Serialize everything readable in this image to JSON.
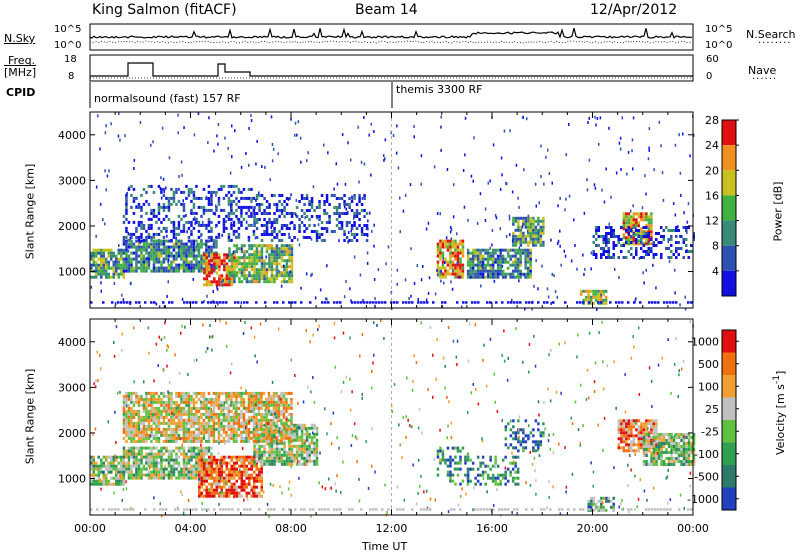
{
  "header": {
    "station": "King Salmon (fitACF)",
    "beam": "Beam 14",
    "date": "12/Apr/2012"
  },
  "top_panels": {
    "nsky_label": "N.Sky",
    "nsearch_label": "N.Search",
    "freq_label_1": "Freq.",
    "freq_label_2": "[MHz]",
    "nave_label": "Nave",
    "cpid_label": "CPID",
    "nsky_ticks": [
      "10^5",
      "10^0"
    ],
    "nsearch_ticks": [
      "10^5",
      "10^0"
    ],
    "freq_ticks": [
      "18",
      "8"
    ],
    "nave_ticks": [
      "60",
      "0"
    ],
    "cpid_segments": [
      {
        "label": "normalsound (fast) 157 RF",
        "start_hour": 0
      },
      {
        "label": "themis 3300 RF",
        "start_hour": 12
      }
    ]
  },
  "chart_data": [
    {
      "type": "heatmap",
      "name": "power-panel",
      "ylabel": "Slant Range [km]",
      "yticks": [
        "1000",
        "2000",
        "3000",
        "4000"
      ],
      "ylim": [
        200,
        4500
      ],
      "xlim": [
        0,
        24
      ],
      "colorbar": {
        "label": "Power [dB]",
        "ticks": [
          "4",
          "8",
          "12",
          "16",
          "20",
          "24",
          "28"
        ],
        "colors": [
          "#1010e0",
          "#2e50b0",
          "#3a8a7a",
          "#40b040",
          "#c8c020",
          "#f09020",
          "#e01010"
        ]
      },
      "regions": [
        {
          "t0": 0.0,
          "t1": 1.3,
          "r0": 900,
          "r1": 1500,
          "level": 0.45
        },
        {
          "t0": 1.3,
          "t1": 5.0,
          "r0": 1000,
          "r1": 1700,
          "level": 0.35
        },
        {
          "t0": 1.3,
          "t1": 6.5,
          "r0": 1700,
          "r1": 2900,
          "level": 0.15
        },
        {
          "t0": 4.5,
          "t1": 5.7,
          "r0": 700,
          "r1": 1400,
          "level": 0.85
        },
        {
          "t0": 5.5,
          "t1": 8.0,
          "r0": 800,
          "r1": 1600,
          "level": 0.5
        },
        {
          "t0": 6.5,
          "t1": 11.0,
          "r0": 1700,
          "r1": 2700,
          "level": 0.15
        },
        {
          "t0": 13.8,
          "t1": 14.8,
          "r0": 900,
          "r1": 1700,
          "level": 0.75
        },
        {
          "t0": 15.0,
          "t1": 17.5,
          "r0": 900,
          "r1": 1500,
          "level": 0.35
        },
        {
          "t0": 16.8,
          "t1": 18.0,
          "r0": 1600,
          "r1": 2200,
          "level": 0.45
        },
        {
          "t0": 19.5,
          "t1": 20.5,
          "r0": 300,
          "r1": 600,
          "level": 0.55
        },
        {
          "t0": 21.2,
          "t1": 22.3,
          "r0": 1600,
          "r1": 2300,
          "level": 0.7
        },
        {
          "t0": 20.0,
          "t1": 24.0,
          "r0": 1300,
          "r1": 2000,
          "level": 0.15
        }
      ]
    },
    {
      "type": "heatmap",
      "name": "velocity-panel",
      "xlabel": "Time UT",
      "ylabel": "Slant Range [km]",
      "yticks": [
        "1000",
        "2000",
        "3000",
        "4000"
      ],
      "xticks": [
        "00:00",
        "04:00",
        "08:00",
        "12:00",
        "16:00",
        "20:00",
        "00:00"
      ],
      "ylim": [
        200,
        4500
      ],
      "xlim": [
        0,
        24
      ],
      "colorbar": {
        "label": "Velocity [m s^-1]",
        "ticks": [
          "1000",
          "500",
          "100",
          "25",
          "-25",
          "-100",
          "-500",
          "-1000"
        ],
        "colors": [
          "#2040c0",
          "#2e7a6a",
          "#30a050",
          "#60c040",
          "#c0c0c0",
          "#f0a030",
          "#f07010",
          "#e01010"
        ]
      },
      "regions": [
        {
          "t0": 0.0,
          "t1": 1.3,
          "r0": 900,
          "r1": 1500,
          "level": 0.45
        },
        {
          "t0": 1.3,
          "t1": 4.8,
          "r0": 1000,
          "r1": 1700,
          "level": 0.45
        },
        {
          "t0": 4.3,
          "t1": 6.8,
          "r0": 600,
          "r1": 1500,
          "level": 0.85
        },
        {
          "t0": 6.5,
          "t1": 9.0,
          "r0": 1300,
          "r1": 2200,
          "level": 0.45
        },
        {
          "t0": 1.3,
          "t1": 8.0,
          "r0": 1800,
          "r1": 2900,
          "level": 0.6
        },
        {
          "t0": 13.8,
          "t1": 15.0,
          "r0": 900,
          "r1": 1700,
          "level": 0.2
        },
        {
          "t0": 15.0,
          "t1": 17.0,
          "r0": 900,
          "r1": 1500,
          "level": 0.25
        },
        {
          "t0": 16.5,
          "t1": 18.0,
          "r0": 1600,
          "r1": 2300,
          "level": 0.15
        },
        {
          "t0": 19.8,
          "t1": 20.8,
          "r0": 300,
          "r1": 600,
          "level": 0.35
        },
        {
          "t0": 21.0,
          "t1": 22.5,
          "r0": 1600,
          "r1": 2300,
          "level": 0.75
        },
        {
          "t0": 22.0,
          "t1": 24.0,
          "r0": 1300,
          "r1": 2000,
          "level": 0.45
        }
      ]
    }
  ]
}
